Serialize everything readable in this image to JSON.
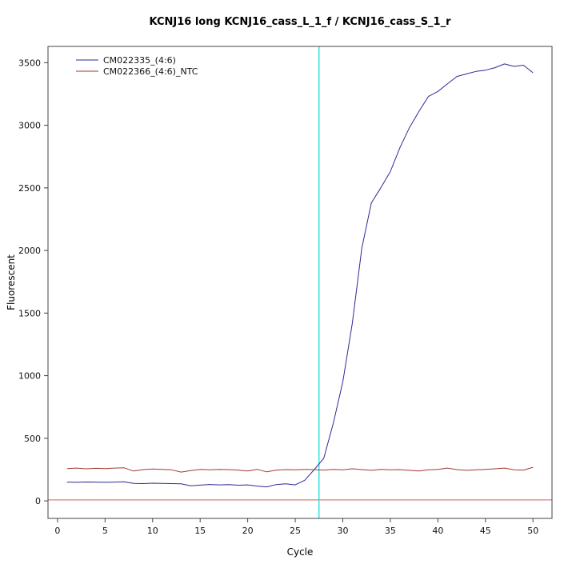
{
  "chart_data": {
    "type": "line",
    "title": "KCNJ16 long KCNJ16_cass_L_1_f / KCNJ16_cass_S_1_r",
    "xlabel": "Cycle",
    "ylabel": "Fluorescent",
    "xlim": [
      -1.0,
      52.0
    ],
    "ylim": [
      -140,
      3630
    ],
    "xticks": [
      0,
      5,
      10,
      15,
      20,
      25,
      30,
      35,
      40,
      45,
      50
    ],
    "yticks": [
      0,
      500,
      1000,
      1500,
      2000,
      2500,
      3000,
      3500
    ],
    "grid": false,
    "legend_position": "top-left",
    "frame_color": "#444444",
    "vline": {
      "x": 27.5,
      "color": "#00dcdc",
      "label": "threshold-cycle"
    },
    "hline": {
      "y": 8,
      "color": "#d4837b",
      "label": "baseline"
    },
    "series": [
      {
        "name": "CM022335_(4:6)",
        "color": "#2b2b94",
        "x_start": 1,
        "x_step": 1,
        "values": [
          150,
          148,
          151,
          150,
          148,
          150,
          152,
          140,
          138,
          141,
          140,
          138,
          136,
          120,
          126,
          131,
          128,
          130,
          125,
          128,
          118,
          112,
          130,
          136,
          128,
          165,
          250,
          340,
          620,
          950,
          1420,
          2020,
          2380,
          2500,
          2630,
          2820,
          2980,
          3110,
          3230,
          3270,
          3330,
          3390,
          3410,
          3430,
          3440,
          3460,
          3490,
          3470,
          3480,
          3420
        ]
      },
      {
        "name": "CM022366_(4:6)_NTC",
        "color": "#a03a32",
        "x_start": 1,
        "x_step": 1,
        "values": [
          258,
          262,
          256,
          260,
          258,
          262,
          264,
          238,
          250,
          254,
          252,
          248,
          230,
          242,
          252,
          248,
          252,
          250,
          246,
          238,
          252,
          232,
          246,
          250,
          248,
          252,
          250,
          246,
          252,
          248,
          256,
          250,
          244,
          252,
          248,
          250,
          244,
          238,
          248,
          252,
          262,
          250,
          244,
          248,
          252,
          256,
          262,
          248,
          246,
          268
        ]
      }
    ]
  }
}
